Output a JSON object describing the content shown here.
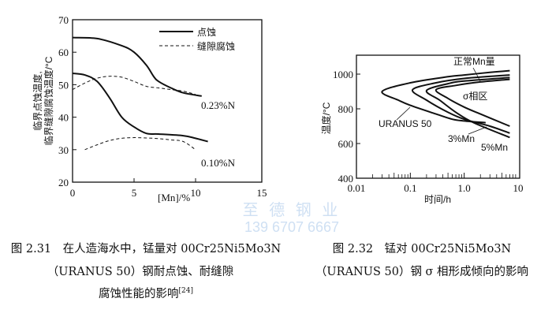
{
  "chart_data": [
    {
      "type": "line",
      "xlabel": "[Mn]/%",
      "ylabel_lines": [
        "临界点蚀温度,",
        "临界缝隙腐蚀温度/°C"
      ],
      "xlim": [
        0,
        15
      ],
      "ylim": [
        20,
        70
      ],
      "xticks": [
        0,
        5,
        10,
        15
      ],
      "yticks": [
        20,
        30,
        40,
        50,
        60,
        70
      ],
      "grid": false,
      "legend": {
        "placement": "top-right",
        "entries": [
          {
            "label": "点蚀",
            "style": "solid"
          },
          {
            "label": "缝隙腐蚀",
            "style": "dashed"
          }
        ]
      },
      "annotations": [
        "0.23%N",
        "0.10%N"
      ],
      "series": [
        {
          "group": "0.23%N",
          "style": "solid",
          "x": [
            0,
            2,
            4,
            5,
            6,
            6.6,
            7,
            8,
            9,
            10.5
          ],
          "y": [
            64.5,
            64.2,
            62,
            60,
            56,
            52.5,
            51,
            49,
            47.5,
            46.5
          ]
        },
        {
          "group": "0.23%N",
          "style": "dashed",
          "x": [
            0,
            1,
            2,
            3,
            4,
            5,
            6,
            7,
            8,
            9,
            10
          ],
          "y": [
            48.5,
            50.5,
            52,
            52.6,
            52.3,
            51,
            49.5,
            49,
            48.5,
            48,
            47
          ]
        },
        {
          "group": "0.10%N",
          "style": "solid",
          "x": [
            0,
            1,
            2,
            3,
            4,
            5,
            6,
            7,
            9,
            10,
            11
          ],
          "y": [
            53.5,
            53,
            51,
            46,
            40,
            37,
            35,
            34.8,
            34.3,
            33.5,
            32.5
          ]
        },
        {
          "group": "0.10%N",
          "style": "dashed",
          "x": [
            1,
            2,
            3,
            4,
            5,
            6,
            7,
            8,
            9,
            10
          ],
          "y": [
            30,
            31.5,
            32.8,
            33.5,
            33.7,
            33.6,
            33.4,
            33,
            32.5,
            30
          ]
        }
      ]
    },
    {
      "type": "line",
      "xlabel": "时间/h",
      "ylabel": "温度/°C",
      "xscale": "log",
      "xlim": [
        0.01,
        10
      ],
      "ylim": [
        400,
        1100
      ],
      "xticks": [
        "0.01",
        "0.1",
        "1.0",
        "10"
      ],
      "yticks": [
        400,
        600,
        800,
        1000
      ],
      "grid": false,
      "annotations": [
        "正常Mn量",
        "σ相区",
        "URANUS 50",
        "3%Mn",
        "5%Mn"
      ],
      "series": [
        {
          "label": "URANUS 50",
          "x": [
            7,
            3,
            1,
            0.5,
            0.1,
            0.03,
            0.06,
            0.1,
            0.3,
            0.6,
            1,
            2.5
          ],
          "y": [
            1020,
            1010,
            995,
            985,
            950,
            900,
            850,
            820,
            770,
            740,
            730,
            720
          ]
        },
        {
          "label": "3%Mn",
          "x": [
            7,
            1,
            0.3,
            0.11,
            0.2,
            0.5,
            1,
            3,
            7
          ],
          "y": [
            995,
            975,
            950,
            910,
            850,
            780,
            740,
            700,
            660
          ]
        },
        {
          "label": "5%Mn",
          "x": [
            7,
            1,
            0.5,
            0.2,
            0.35,
            0.7,
            1.5,
            7
          ],
          "y": [
            980,
            960,
            945,
            905,
            850,
            780,
            720,
            635
          ]
        },
        {
          "label": "正常Mn量",
          "x": [
            7,
            2,
            0.7,
            0.3,
            0.5,
            1,
            2,
            7
          ],
          "y": [
            970,
            955,
            935,
            910,
            860,
            810,
            770,
            700
          ]
        }
      ]
    }
  ],
  "captions": {
    "left": {
      "line1": "图 2.31　在人造海水中，锰量对 00Cr25Ni5Mo3N",
      "line2": "（URANUS 50）钢耐点蚀、耐缝隙",
      "line3": "腐蚀性能的影响",
      "ref": "[24]"
    },
    "right": {
      "line1": "图 2.32　锰对 00Cr25Ni5Mo3N",
      "line2": "（URANUS 50）钢 σ 相形成倾向的影响"
    }
  },
  "watermark": {
    "company": "至 德 钢 业",
    "phone": "139 6707 6667"
  }
}
